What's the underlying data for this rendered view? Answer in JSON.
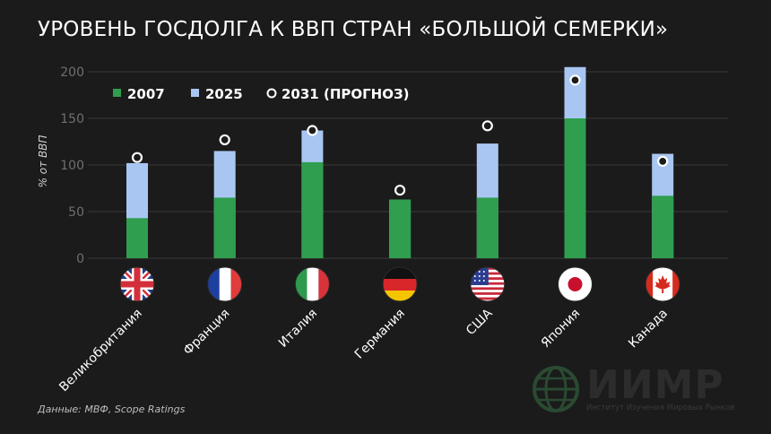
{
  "title": "УРОВЕНЬ ГОСДОЛГА К ВВП СТРАН «БОЛЬШОЙ СЕМЕРКИ»",
  "source": "Данные: МВФ, Scope Ratings",
  "logo": {
    "name": "ИИМР",
    "subtitle": "Институт Изучения Мировых Рынков"
  },
  "colors": {
    "bar_2007": "#2f9e4e",
    "bar_2025": "#a9c6f2",
    "marker": "#ffffff",
    "background": "#1b1b1b",
    "grid": "#3a3a3a"
  },
  "chart_data": {
    "type": "bar",
    "ylabel": "% от ВВП",
    "ylim": [
      0,
      200
    ],
    "yticks": [
      0,
      50,
      100,
      150,
      200
    ],
    "categories": [
      "Великобритания",
      "Франция",
      "Италия",
      "Германия",
      "США",
      "Япония",
      "Канада"
    ],
    "flags": [
      "uk-flag",
      "france-flag",
      "italy-flag",
      "germany-flag",
      "usa-flag",
      "japan-flag",
      "canada-flag"
    ],
    "series": [
      {
        "name": "2007",
        "values": [
          43,
          65,
          103,
          63,
          65,
          150,
          67
        ]
      },
      {
        "name": "2025",
        "values": [
          102,
          115,
          137,
          62,
          123,
          205,
          112
        ]
      },
      {
        "name": "2031 (ПРОГНОЗ)",
        "values": [
          108,
          127,
          137,
          73,
          142,
          191,
          104
        ]
      }
    ],
    "legend_position": "top-left",
    "grid": true
  }
}
